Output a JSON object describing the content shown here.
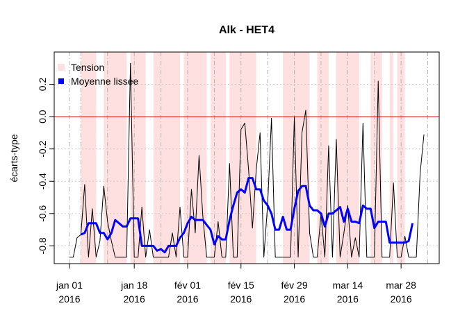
{
  "chart_data": {
    "type": "line",
    "title": "Alk - HET4",
    "y_label": "écarts-type",
    "x": [
      "2016-01-01",
      "2016-01-02",
      "2016-01-03",
      "2016-01-04",
      "2016-01-05",
      "2016-01-06",
      "2016-01-07",
      "2016-01-08",
      "2016-01-09",
      "2016-01-10",
      "2016-01-11",
      "2016-01-12",
      "2016-01-13",
      "2016-01-14",
      "2016-01-15",
      "2016-01-16",
      "2016-01-17",
      "2016-01-18",
      "2016-01-19",
      "2016-01-20",
      "2016-01-21",
      "2016-01-22",
      "2016-01-23",
      "2016-01-24",
      "2016-01-25",
      "2016-01-26",
      "2016-01-27",
      "2016-01-28",
      "2016-01-29",
      "2016-01-30",
      "2016-01-31",
      "2016-02-01",
      "2016-02-02",
      "2016-02-03",
      "2016-02-04",
      "2016-02-05",
      "2016-02-06",
      "2016-02-07",
      "2016-02-08",
      "2016-02-09",
      "2016-02-10",
      "2016-02-11",
      "2016-02-12",
      "2016-02-13",
      "2016-02-14",
      "2016-02-15",
      "2016-02-16",
      "2016-02-17",
      "2016-02-18",
      "2016-02-19",
      "2016-02-20",
      "2016-02-21",
      "2016-02-22",
      "2016-02-23",
      "2016-02-24",
      "2016-02-25",
      "2016-02-26",
      "2016-02-27",
      "2016-02-28",
      "2016-02-29",
      "2016-03-01",
      "2016-03-02",
      "2016-03-03",
      "2016-03-04",
      "2016-03-05",
      "2016-03-06",
      "2016-03-07",
      "2016-03-08",
      "2016-03-09",
      "2016-03-10",
      "2016-03-11",
      "2016-03-12",
      "2016-03-13",
      "2016-03-14",
      "2016-03-15",
      "2016-03-16",
      "2016-03-17",
      "2016-03-18",
      "2016-03-19",
      "2016-03-20",
      "2016-03-21",
      "2016-03-22",
      "2016-03-23",
      "2016-03-24",
      "2016-03-25",
      "2016-03-26",
      "2016-03-27",
      "2016-03-28",
      "2016-03-29",
      "2016-03-30",
      "2016-03-31",
      "2016-04-01",
      "2016-04-02",
      "2016-04-03"
    ],
    "series": [
      {
        "color": "#000000",
        "width": 1,
        "values": [
          -0.87,
          -0.87,
          -0.75,
          -0.73,
          -0.42,
          -0.87,
          -0.57,
          -0.87,
          -0.77,
          -0.43,
          -0.65,
          -0.77,
          -0.87,
          -0.87,
          -0.87,
          -0.87,
          0.33,
          -0.87,
          -0.87,
          -0.56,
          -0.87,
          -0.7,
          -0.87,
          -0.87,
          -0.87,
          -0.87,
          -0.87,
          -0.72,
          -0.87,
          -0.56,
          -0.87,
          -0.87,
          -0.45,
          -0.72,
          -0.24,
          -0.62,
          -0.87,
          -0.87,
          -0.87,
          -0.65,
          -0.87,
          -0.87,
          -0.29,
          -0.87,
          -0.87,
          -0.08,
          -0.04,
          -0.33,
          -0.69,
          -0.33,
          -0.1,
          -0.87,
          -0.54,
          -0.01,
          -0.87,
          -0.87,
          -0.87,
          -0.87,
          -0.87,
          0.0,
          -0.87,
          -0.1,
          0.04,
          -0.72,
          -0.87,
          -0.87,
          -0.6,
          -0.87,
          -0.18,
          -0.87,
          -0.14,
          -0.87,
          -0.72,
          -0.55,
          -0.87,
          -0.75,
          -0.87,
          -0.04,
          -0.87,
          -0.87,
          -0.87,
          0.22,
          -0.87,
          -0.87,
          -0.87,
          -0.41,
          -0.87,
          -0.87,
          -0.74,
          -0.87,
          -0.87,
          -0.87,
          -0.35,
          -0.11
        ]
      },
      {
        "name": "Moyenne lissée",
        "color": "#0000ff",
        "width": 3,
        "values": [
          null,
          null,
          null,
          -0.73,
          -0.72,
          -0.66,
          -0.66,
          -0.66,
          -0.72,
          -0.72,
          -0.76,
          -0.72,
          -0.64,
          -0.66,
          -0.68,
          -0.68,
          -0.63,
          -0.63,
          -0.63,
          -0.8,
          -0.8,
          -0.8,
          -0.8,
          -0.83,
          -0.82,
          -0.84,
          -0.8,
          -0.8,
          -0.8,
          -0.75,
          -0.72,
          -0.66,
          -0.62,
          -0.64,
          -0.64,
          -0.64,
          -0.67,
          -0.7,
          -0.79,
          -0.74,
          -0.76,
          -0.76,
          -0.64,
          -0.55,
          -0.47,
          -0.45,
          -0.47,
          -0.38,
          -0.38,
          -0.45,
          -0.45,
          -0.52,
          -0.55,
          -0.6,
          -0.7,
          -0.7,
          -0.62,
          -0.7,
          -0.7,
          -0.57,
          -0.46,
          -0.43,
          -0.43,
          -0.55,
          -0.58,
          -0.58,
          -0.6,
          -0.68,
          -0.6,
          -0.6,
          -0.58,
          -0.56,
          -0.65,
          -0.57,
          -0.65,
          -0.65,
          -0.66,
          -0.55,
          -0.57,
          -0.57,
          -0.69,
          -0.65,
          -0.65,
          -0.65,
          -0.78,
          -0.78,
          -0.78,
          -0.78,
          -0.78,
          -0.77,
          -0.66,
          null,
          null,
          null
        ]
      }
    ],
    "bands": {
      "name": "Tension",
      "color": "#ffe0e0",
      "ranges": [
        [
          "2016-01-04",
          "2016-01-08"
        ],
        [
          "2016-01-10",
          "2016-01-16"
        ],
        [
          "2016-01-17",
          "2016-01-21"
        ],
        [
          "2016-01-23",
          "2016-01-30"
        ],
        [
          "2016-01-31",
          "2016-02-06"
        ],
        [
          "2016-02-07",
          "2016-02-11"
        ],
        [
          "2016-02-12",
          "2016-02-19"
        ],
        [
          "2016-02-26",
          "2016-03-04"
        ],
        [
          "2016-03-06",
          "2016-03-09"
        ],
        [
          "2016-03-11",
          "2016-03-17"
        ],
        [
          "2016-03-20",
          "2016-03-23"
        ],
        [
          "2016-03-25",
          "2016-03-26"
        ],
        [
          "2016-03-27",
          "2016-03-29"
        ]
      ]
    },
    "hline": 0,
    "hline_color": "#ff0000",
    "xlim": [
      "2015-12-28",
      "2016-04-07"
    ],
    "xticks": [
      {
        "value": "2016-01-01",
        "label": "jan 01\n2016"
      },
      {
        "value": "2016-01-18",
        "label": "jan 18\n2016"
      },
      {
        "value": "2016-02-01",
        "label": "fév 01\n2016"
      },
      {
        "value": "2016-02-15",
        "label": "fév 15\n2016"
      },
      {
        "value": "2016-02-29",
        "label": "fév 29\n2016"
      },
      {
        "value": "2016-03-14",
        "label": "mar 14\n2016"
      },
      {
        "value": "2016-03-28",
        "label": "mar 28\n2016"
      }
    ],
    "xgrid": [
      "2016-01-04",
      "2016-01-11",
      "2016-01-25",
      "2016-02-08",
      "2016-02-22",
      "2016-03-07",
      "2016-03-21",
      "2016-04-04"
    ],
    "ylim": [
      -0.91,
      0.4
    ],
    "yticks": [
      0.2,
      {
        "value": 0,
        "label": "0.0"
      },
      -0.2,
      -0.4,
      -0.6,
      -0.8
    ],
    "grid": true,
    "legend": "top-left"
  }
}
